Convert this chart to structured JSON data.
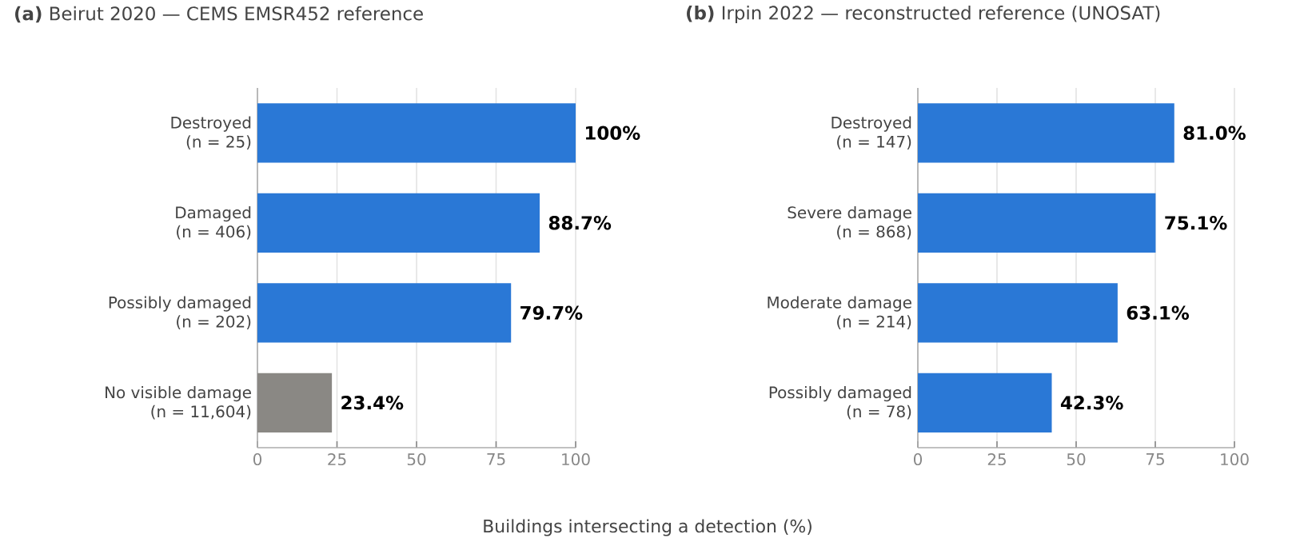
{
  "chart_data": [
    {
      "type": "bar",
      "orientation": "horizontal",
      "title": "**(a)** Beirut 2020 — CEMS EMSR452 reference",
      "xlabel": "Buildings intersecting a detection (%)",
      "categories": [
        "Destroyed\n(n = 25)",
        "Damaged\n(n = 406)",
        "Possibly damaged\n(n = 202)",
        "No visible damage\n(n = 11,604)"
      ],
      "values": [
        100,
        88.7,
        79.7,
        23.4
      ],
      "value_labels": [
        "100%",
        "88.7%",
        "79.7%",
        "23.4%"
      ],
      "colors": [
        "#2a78d6",
        "#2a78d6",
        "#2a78d6",
        "#8a8884"
      ],
      "xlim": [
        0,
        100
      ],
      "xticks": [
        0,
        25,
        50,
        75,
        100
      ],
      "grid": "x"
    },
    {
      "type": "bar",
      "orientation": "horizontal",
      "title": "**(b)** Irpin 2022 — reconstructed reference (UNOSAT)",
      "categories": [
        "Destroyed\n(n = 147)",
        "Severe damage\n(n = 868)",
        "Moderate damage\n(n = 214)",
        "Possibly damaged\n(n = 78)"
      ],
      "values": [
        81.0,
        75.1,
        63.1,
        42.3
      ],
      "value_labels": [
        "81.0%",
        "75.1%",
        "63.1%",
        "42.3%"
      ],
      "colors": [
        "#2a78d6",
        "#2a78d6",
        "#2a78d6",
        "#2a78d6"
      ],
      "xlim": [
        0,
        100
      ],
      "xticks": [
        0,
        25,
        50,
        75,
        100
      ],
      "grid": "x"
    }
  ]
}
